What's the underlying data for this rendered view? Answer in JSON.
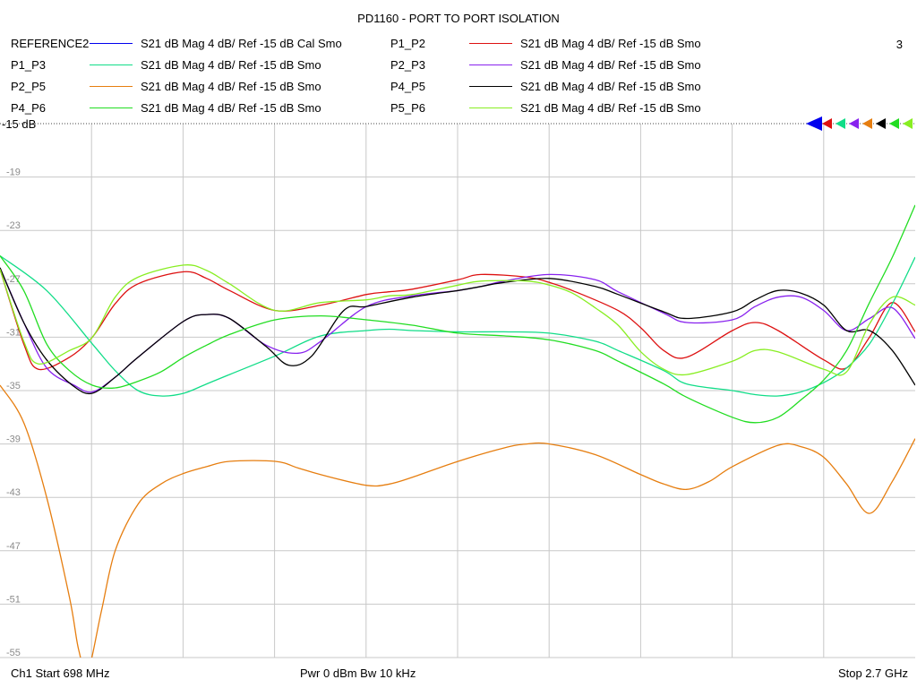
{
  "title": "PD1160 - PORT TO PORT ISOLATION",
  "channel_number": "3",
  "footer": {
    "start": "Ch1  Start  698 MHz",
    "power": "Pwr  0 dBm  Bw  10 kHz",
    "stop": "Stop  2.7 GHz"
  },
  "chart_data": {
    "type": "line",
    "title": "PD1160 - PORT TO PORT ISOLATION",
    "xlabel": "",
    "ylabel": "",
    "x_range_mhz": [
      698,
      2700
    ],
    "ylim": [
      -55,
      -15
    ],
    "reference_label": "-15 dB",
    "y_ticks": [
      -19,
      -23,
      -27,
      -31,
      -35,
      -39,
      -43,
      -47,
      -51,
      -55
    ],
    "y_tick_labels": [
      "-19",
      "-23",
      "-27",
      "-31",
      "-35",
      "-39",
      "-43",
      "-47",
      "-51",
      "-55"
    ],
    "grid": true,
    "series": [
      {
        "name": "REFERENCE2",
        "desc": "S21  dB Mag  4 dB/ Ref -15 dB  Cal Smo",
        "color": "#0000ee",
        "x": [],
        "y": []
      },
      {
        "name": "P1_P2",
        "desc": "S21  dB Mag  4 dB/ Ref -15 dB  Smo",
        "color": "#dd1111",
        "x": [
          698,
          750,
          782,
          850,
          900,
          950,
          1000,
          1100,
          1150,
          1200,
          1300,
          1400,
          1500,
          1550,
          1600,
          1700,
          1750,
          1850,
          1900,
          1950,
          2050,
          2100,
          2150,
          2200,
          2300,
          2350,
          2400,
          2500,
          2550,
          2600,
          2650,
          2700
        ],
        "y": [
          -25.9,
          -31.5,
          -33.4,
          -32.5,
          -31.0,
          -28.5,
          -27.0,
          -26.1,
          -26.6,
          -27.5,
          -29.0,
          -28.6,
          -27.8,
          -27.6,
          -27.4,
          -26.7,
          -26.3,
          -26.5,
          -26.9,
          -27.5,
          -29.0,
          -30.3,
          -32.0,
          -32.5,
          -30.5,
          -29.9,
          -30.5,
          -32.7,
          -33.3,
          -31.0,
          -28.4,
          -30.6
        ]
      },
      {
        "name": "P1_P3",
        "desc": "S21  dB Mag  4 dB/ Ref -15 dB  Smo",
        "color": "#11dd88",
        "x": [
          698,
          800,
          900,
          950,
          1000,
          1050,
          1100,
          1150,
          1200,
          1300,
          1400,
          1500,
          1550,
          1600,
          1700,
          1800,
          1900,
          2000,
          2050,
          2150,
          2200,
          2300,
          2350,
          2400,
          2450,
          2500,
          2550,
          2600,
          2650,
          2700
        ],
        "y": [
          -24.9,
          -27.5,
          -31.5,
          -33.5,
          -35.0,
          -35.4,
          -35.2,
          -34.5,
          -33.8,
          -32.4,
          -30.9,
          -30.5,
          -30.4,
          -30.5,
          -30.6,
          -30.6,
          -30.7,
          -31.3,
          -32.0,
          -33.5,
          -34.5,
          -35.0,
          -35.3,
          -35.4,
          -35.1,
          -34.4,
          -33.3,
          -31.5,
          -28.5,
          -25.0
        ]
      },
      {
        "name": "P2_P3",
        "desc": "S21  dB Mag  4 dB/ Ref -15 dB  Smo",
        "color": "#8822ee",
        "x": [
          698,
          750,
          800,
          860,
          900,
          950,
          1000,
          1100,
          1150,
          1200,
          1280,
          1350,
          1400,
          1500,
          1600,
          1700,
          1750,
          1800,
          1900,
          2000,
          2050,
          2150,
          2200,
          2300,
          2350,
          2400,
          2450,
          2500,
          2550,
          2600,
          2650,
          2700
        ],
        "y": [
          -25.8,
          -29.9,
          -33.3,
          -34.6,
          -35.1,
          -34.0,
          -32.5,
          -29.8,
          -29.3,
          -29.6,
          -31.6,
          -32.2,
          -31.3,
          -28.7,
          -27.9,
          -27.5,
          -27.2,
          -26.8,
          -26.3,
          -26.7,
          -27.6,
          -29.2,
          -29.9,
          -29.7,
          -28.7,
          -28.0,
          -28.0,
          -29.0,
          -30.5,
          -29.6,
          -28.8,
          -31.1
        ]
      },
      {
        "name": "P2_P5",
        "desc": "S21  dB Mag  4 dB/ Ref -15 dB  Smo",
        "color": "#e67e10",
        "x": [
          698,
          750,
          800,
          850,
          870,
          890,
          920,
          950,
          1000,
          1050,
          1100,
          1150,
          1200,
          1300,
          1350,
          1400,
          1500,
          1550,
          1600,
          1700,
          1800,
          1850,
          1900,
          2000,
          2100,
          2150,
          2200,
          2250,
          2300,
          2400,
          2450,
          2500,
          2550,
          2600,
          2650,
          2700
        ],
        "y": [
          -34.6,
          -37.4,
          -43.0,
          -50.5,
          -54.4,
          -56.0,
          -51.5,
          -47.0,
          -43.5,
          -42.0,
          -41.2,
          -40.7,
          -40.3,
          -40.3,
          -40.8,
          -41.3,
          -42.1,
          -42.0,
          -41.5,
          -40.3,
          -39.3,
          -39.0,
          -39.0,
          -39.8,
          -41.3,
          -42.0,
          -42.4,
          -41.8,
          -40.7,
          -39.1,
          -39.2,
          -40.0,
          -42.0,
          -44.2,
          -41.8,
          -38.6
        ]
      },
      {
        "name": "P4_P5",
        "desc": "S21  dB Mag  4 dB/ Ref -15 dB  Smo",
        "color": "#000000",
        "x": [
          698,
          750,
          800,
          860,
          900,
          950,
          1000,
          1100,
          1150,
          1200,
          1280,
          1330,
          1380,
          1450,
          1500,
          1600,
          1700,
          1750,
          1800,
          1900,
          2000,
          2050,
          2150,
          2200,
          2300,
          2350,
          2400,
          2450,
          2500,
          2550,
          2600,
          2650,
          2700
        ],
        "y": [
          -25.8,
          -29.9,
          -32.7,
          -34.7,
          -35.2,
          -34.0,
          -32.5,
          -29.8,
          -29.3,
          -29.6,
          -31.7,
          -33.1,
          -32.4,
          -29.0,
          -28.7,
          -28.0,
          -27.5,
          -27.2,
          -26.9,
          -26.6,
          -27.2,
          -27.8,
          -29.1,
          -29.6,
          -29.1,
          -28.2,
          -27.5,
          -27.7,
          -28.6,
          -30.5,
          -30.5,
          -32.0,
          -34.6
        ]
      },
      {
        "name": "P4_P6",
        "desc": "S21  dB Mag  4 dB/ Ref -15 dB  Smo",
        "color": "#22dd22",
        "x": [
          698,
          750,
          800,
          850,
          900,
          950,
          1000,
          1050,
          1100,
          1150,
          1200,
          1300,
          1400,
          1500,
          1600,
          1700,
          1800,
          1900,
          2000,
          2050,
          2150,
          2200,
          2300,
          2350,
          2400,
          2450,
          2500,
          2550,
          2600,
          2650,
          2700
        ],
        "y": [
          -24.9,
          -27.5,
          -31.5,
          -33.5,
          -34.6,
          -34.8,
          -34.3,
          -33.6,
          -32.5,
          -31.6,
          -30.8,
          -29.7,
          -29.4,
          -29.7,
          -30.1,
          -30.7,
          -30.9,
          -31.2,
          -32.0,
          -32.8,
          -34.5,
          -35.5,
          -37.0,
          -37.4,
          -37.0,
          -35.7,
          -34.2,
          -32.0,
          -28.4,
          -25.0,
          -21.1
        ]
      },
      {
        "name": "P5_P6",
        "desc": "S21  dB Mag  4 dB/ Ref -15 dB  Smo",
        "color": "#88ee22",
        "x": [
          698,
          750,
          782,
          850,
          900,
          950,
          1000,
          1100,
          1150,
          1200,
          1300,
          1400,
          1500,
          1550,
          1600,
          1700,
          1750,
          1850,
          1900,
          1950,
          2000,
          2050,
          2100,
          2150,
          2200,
          2300,
          2350,
          2400,
          2500,
          2550,
          2600,
          2650,
          2700
        ],
        "y": [
          -25.9,
          -31.3,
          -33.0,
          -32.0,
          -31.0,
          -28.0,
          -26.5,
          -25.6,
          -26.0,
          -27.0,
          -29.0,
          -28.4,
          -28.2,
          -27.9,
          -27.8,
          -27.1,
          -26.8,
          -26.8,
          -27.1,
          -27.7,
          -28.8,
          -30.1,
          -32.1,
          -33.4,
          -33.8,
          -32.8,
          -32.0,
          -32.1,
          -33.4,
          -33.6,
          -30.0,
          -28.0,
          -28.6
        ]
      }
    ]
  }
}
